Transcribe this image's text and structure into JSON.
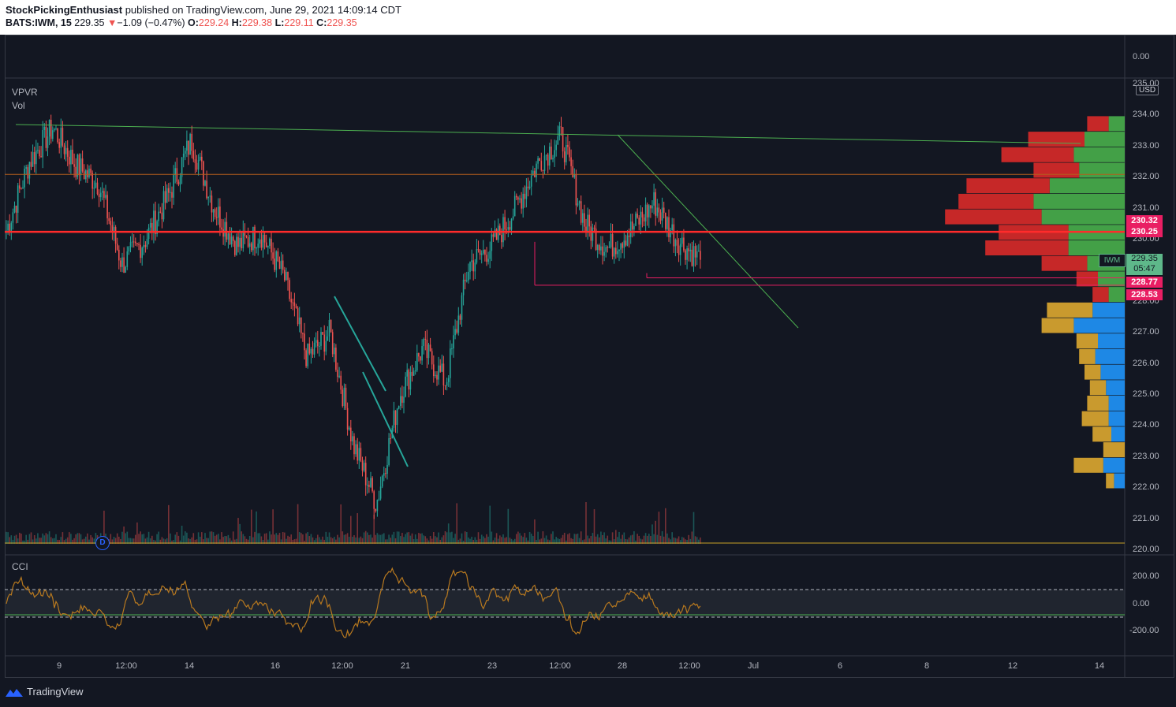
{
  "header": {
    "author": "StockPickingEnthusiast",
    "published": " published on TradingView.com, June 29, 2021 14:09:14 CDT",
    "symbol": "BATS:IWM, 15",
    "price": "229.35",
    "change_arrow": "▼",
    "change": "−1.09 (−0.47%)",
    "o_label": "O:",
    "o_value": "229.24",
    "h_label": "H:",
    "h_value": "229.38",
    "l_label": "L:",
    "l_value": "229.11",
    "c_label": "C:",
    "c_value": "229.35"
  },
  "top_pane": {
    "zero_label": "0.00"
  },
  "main_pane": {
    "labels": [
      "VPVR",
      "Vol"
    ],
    "currency_button": "USD",
    "price_ticks": [
      "235.00",
      "234.00",
      "233.00",
      "232.00",
      "231.00",
      "230.00",
      "229.00",
      "228.00",
      "227.00",
      "226.00",
      "225.00",
      "224.00",
      "223.00",
      "222.00",
      "221.00",
      "220.00"
    ],
    "price_tags": {
      "upper_line": "230.32",
      "red_line": "230.25",
      "line_2877": "228.77",
      "line_2853": "228.53"
    },
    "current": {
      "symbol": "IWM",
      "price": "229.35",
      "countdown": "05:47"
    },
    "dividend_marker": "D"
  },
  "cci_pane": {
    "label": "CCI",
    "ticks": [
      "200.00",
      "0.00",
      "-200.00"
    ]
  },
  "time_axis": [
    "9",
    "12:00",
    "14",
    "16",
    "12:00",
    "21",
    "23",
    "12:00",
    "28",
    "12:00",
    "Jul",
    "6",
    "8",
    "12",
    "14"
  ],
  "footer": {
    "brand": "TradingView"
  },
  "colors": {
    "background": "#131722",
    "bull": "#26a69a",
    "bear": "#ef5350",
    "red_line": "#ff2b2b",
    "trend_green": "#4caf50",
    "orange_line": "#b35e1d",
    "tag_red": "#e91e63",
    "vp_up": "#43a047",
    "vp_down": "#c62828",
    "vp_up_other": "#1e88e5",
    "vp_down_other": "#c99a2e",
    "cci_line": "#b8791f"
  },
  "chart_data": {
    "type": "candlestick",
    "symbol": "BATS:IWM",
    "interval": "15",
    "ylim": [
      220,
      235
    ],
    "open": 229.24,
    "high": 229.38,
    "low": 229.11,
    "close": 229.35,
    "price_path": [
      [
        "9",
        230.3
      ],
      [
        "9",
        232.5
      ],
      [
        "9",
        233.6
      ],
      [
        "9",
        232.4
      ],
      [
        "9",
        231.8
      ],
      [
        "12:00",
        229.2
      ],
      [
        "12:00",
        230.0
      ],
      [
        "14",
        231.4
      ],
      [
        "14",
        233.2
      ],
      [
        "14",
        231.0
      ],
      [
        "16",
        229.8
      ],
      [
        "16",
        230.2
      ],
      [
        "16",
        228.8
      ],
      [
        "12:00",
        226.2
      ],
      [
        "12:00",
        227.0
      ],
      [
        "21",
        223.4
      ],
      [
        "21",
        221.5
      ],
      [
        "21",
        225.0
      ],
      [
        "21",
        226.5
      ],
      [
        "23",
        225.4
      ],
      [
        "23",
        229.2
      ],
      [
        "23",
        229.8
      ],
      [
        "12:00",
        231.0
      ],
      [
        "12:00",
        232.5
      ],
      [
        "28",
        233.3
      ],
      [
        "28",
        230.5
      ],
      [
        "28",
        229.7
      ],
      [
        "28",
        230.3
      ],
      [
        "12:00",
        231.2
      ],
      [
        "12:00",
        230.0
      ],
      [
        "12:00",
        229.35
      ]
    ],
    "horizontal_levels": [
      232.1,
      230.25,
      228.77,
      228.53,
      220.2
    ],
    "volume_profile": [
      {
        "price": 233.5,
        "up": 6,
        "down": 8
      },
      {
        "price": 233.0,
        "up": 15,
        "down": 21
      },
      {
        "price": 232.5,
        "up": 19,
        "down": 27
      },
      {
        "price": 232.0,
        "up": 17,
        "down": 17
      },
      {
        "price": 231.5,
        "up": 28,
        "down": 31
      },
      {
        "price": 231.0,
        "up": 34,
        "down": 28
      },
      {
        "price": 230.5,
        "up": 31,
        "down": 36
      },
      {
        "price": 230.0,
        "up": 21,
        "down": 26
      },
      {
        "price": 229.5,
        "up": 21,
        "down": 31
      },
      {
        "price": 229.0,
        "up": 14,
        "down": 17
      },
      {
        "price": 228.5,
        "up": 10,
        "down": 8
      },
      {
        "price": 228.0,
        "up": 6,
        "down": 6
      },
      {
        "price": 227.5,
        "up": 12,
        "down": 17
      },
      {
        "price": 227.0,
        "up": 19,
        "down": 12
      },
      {
        "price": 226.5,
        "up": 10,
        "down": 8
      },
      {
        "price": 226.0,
        "up": 11,
        "down": 6
      },
      {
        "price": 225.5,
        "up": 9,
        "down": 6
      },
      {
        "price": 225.0,
        "up": 7,
        "down": 6
      },
      {
        "price": 224.5,
        "up": 6,
        "down": 8
      },
      {
        "price": 224.0,
        "up": 6,
        "down": 10
      },
      {
        "price": 223.5,
        "up": 5,
        "down": 7
      },
      {
        "price": 223.0,
        "up": 0,
        "down": 8
      },
      {
        "price": 222.5,
        "up": 8,
        "down": 11
      },
      {
        "price": 222.0,
        "up": 4,
        "down": 3
      }
    ]
  }
}
